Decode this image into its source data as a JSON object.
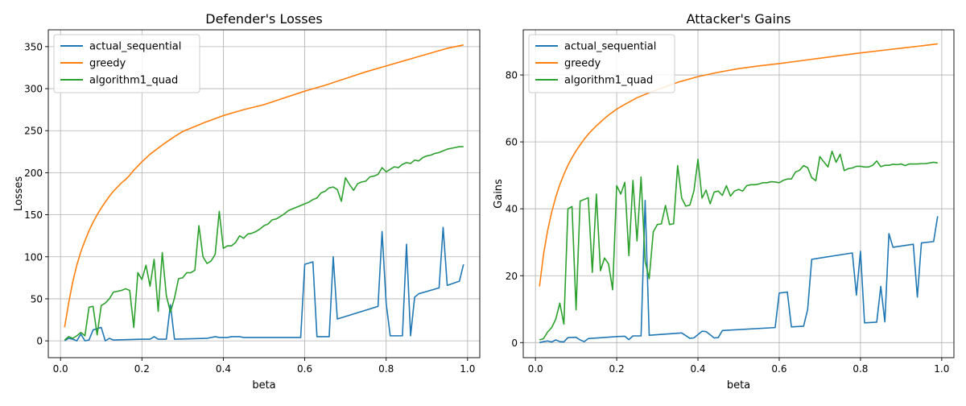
{
  "charts": [
    {
      "type": "line",
      "title": "Defender's Losses",
      "xlabel": "beta",
      "ylabel": "Losses",
      "xlim": [
        -0.03,
        1.03
      ],
      "ylim": [
        -20,
        370
      ],
      "xticks": [
        0.0,
        0.2,
        0.4,
        0.6,
        0.8,
        1.0
      ],
      "xtick_labels": [
        "0.0",
        "0.2",
        "0.4",
        "0.6",
        "0.8",
        "1.0"
      ],
      "yticks": [
        0,
        50,
        100,
        150,
        200,
        250,
        300,
        350
      ],
      "ytick_labels": [
        "0",
        "50",
        "100",
        "150",
        "200",
        "250",
        "300",
        "350"
      ],
      "grid": true,
      "legend_position": "upper-left",
      "series": [
        {
          "name": "actual_sequential",
          "color": "#1f77b4",
          "x": [
            0.01,
            0.02,
            0.03,
            0.04,
            0.05,
            0.06,
            0.07,
            0.08,
            0.1,
            0.11,
            0.12,
            0.13,
            0.2,
            0.22,
            0.23,
            0.24,
            0.26,
            0.27,
            0.28,
            0.36,
            0.38,
            0.39,
            0.41,
            0.42,
            0.44,
            0.45,
            0.46,
            0.59,
            0.6,
            0.62,
            0.63,
            0.66,
            0.67,
            0.68,
            0.78,
            0.79,
            0.8,
            0.81,
            0.84,
            0.85,
            0.86,
            0.87,
            0.88,
            0.93,
            0.94,
            0.95,
            0.98,
            0.99
          ],
          "y": [
            0,
            3,
            2,
            0,
            8,
            0,
            1,
            13,
            16,
            0,
            3,
            1,
            2,
            2,
            5,
            2,
            2,
            43,
            2,
            3,
            5,
            4,
            4,
            5,
            5,
            4,
            4,
            4,
            91,
            94,
            5,
            5,
            100,
            26,
            41,
            130,
            45,
            6,
            6,
            115,
            6,
            52,
            56,
            63,
            135,
            66,
            71,
            91
          ]
        },
        {
          "name": "greedy",
          "color": "#ff7f0e",
          "x": [
            0.01,
            0.02,
            0.03,
            0.04,
            0.05,
            0.06,
            0.07,
            0.08,
            0.09,
            0.1,
            0.11,
            0.12,
            0.13,
            0.14,
            0.15,
            0.16,
            0.17,
            0.18,
            0.2,
            0.22,
            0.25,
            0.28,
            0.3,
            0.35,
            0.4,
            0.45,
            0.5,
            0.55,
            0.6,
            0.65,
            0.7,
            0.75,
            0.8,
            0.85,
            0.9,
            0.95,
            0.99
          ],
          "y": [
            16,
            45,
            70,
            90,
            106,
            119,
            131,
            141,
            150,
            158,
            165,
            172,
            178,
            183,
            188,
            192,
            197,
            203,
            213,
            222,
            233,
            243,
            249,
            259,
            268,
            275,
            281,
            289,
            297,
            304,
            312,
            320,
            327,
            334,
            341,
            348,
            352
          ]
        },
        {
          "name": "algorithm1_quad",
          "color": "#2ca02c",
          "x": [
            0.01,
            0.02,
            0.03,
            0.04,
            0.05,
            0.06,
            0.07,
            0.08,
            0.09,
            0.1,
            0.11,
            0.12,
            0.13,
            0.14,
            0.15,
            0.16,
            0.17,
            0.18,
            0.19,
            0.2,
            0.21,
            0.22,
            0.23,
            0.24,
            0.25,
            0.26,
            0.27,
            0.28,
            0.29,
            0.3,
            0.31,
            0.32,
            0.33,
            0.34,
            0.35,
            0.36,
            0.37,
            0.38,
            0.39,
            0.4,
            0.41,
            0.42,
            0.43,
            0.44,
            0.45,
            0.46,
            0.47,
            0.48,
            0.49,
            0.5,
            0.51,
            0.52,
            0.53,
            0.54,
            0.55,
            0.56,
            0.57,
            0.58,
            0.59,
            0.6,
            0.61,
            0.62,
            0.63,
            0.64,
            0.65,
            0.66,
            0.67,
            0.68,
            0.69,
            0.7,
            0.71,
            0.72,
            0.73,
            0.74,
            0.75,
            0.76,
            0.77,
            0.78,
            0.79,
            0.8,
            0.81,
            0.82,
            0.83,
            0.84,
            0.85,
            0.86,
            0.87,
            0.88,
            0.89,
            0.9,
            0.91,
            0.92,
            0.93,
            0.94,
            0.95,
            0.96,
            0.97,
            0.98,
            0.99
          ],
          "y": [
            1,
            5,
            3,
            6,
            10,
            6,
            40,
            41,
            7,
            42,
            45,
            50,
            58,
            59,
            60,
            62,
            60,
            16,
            81,
            73,
            90,
            65,
            97,
            35,
            105,
            54,
            34,
            51,
            74,
            75,
            81,
            81,
            84,
            137,
            100,
            92,
            95,
            103,
            154,
            110,
            113,
            113,
            117,
            125,
            122,
            127,
            128,
            130,
            133,
            137,
            139,
            144,
            145,
            148,
            151,
            155,
            157,
            159,
            161,
            163,
            165,
            168,
            170,
            176,
            178,
            182,
            183,
            180,
            166,
            194,
            186,
            179,
            187,
            189,
            190,
            195,
            196,
            198,
            206,
            201,
            204,
            207,
            206,
            210,
            212,
            211,
            215,
            214,
            218,
            220,
            221,
            223,
            224,
            226,
            228,
            229,
            230,
            231,
            231
          ]
        }
      ]
    },
    {
      "type": "line",
      "title": "Attacker's Gains",
      "xlabel": "beta",
      "ylabel": "Gains",
      "xlim": [
        -0.03,
        1.03
      ],
      "ylim": [
        -4.5,
        93.5
      ],
      "xticks": [
        0.0,
        0.2,
        0.4,
        0.6,
        0.8,
        1.0
      ],
      "xtick_labels": [
        "0.0",
        "0.2",
        "0.4",
        "0.6",
        "0.8",
        "1.0"
      ],
      "yticks": [
        0,
        20,
        40,
        60,
        80
      ],
      "ytick_labels": [
        "0",
        "20",
        "40",
        "60",
        "80"
      ],
      "grid": true,
      "legend_position": "upper-left",
      "series": [
        {
          "name": "actual_sequential",
          "color": "#1f77b4",
          "x": [
            0.01,
            0.02,
            0.03,
            0.04,
            0.05,
            0.06,
            0.07,
            0.08,
            0.1,
            0.11,
            0.12,
            0.13,
            0.2,
            0.22,
            0.23,
            0.24,
            0.26,
            0.27,
            0.28,
            0.36,
            0.38,
            0.39,
            0.41,
            0.42,
            0.44,
            0.45,
            0.46,
            0.59,
            0.6,
            0.62,
            0.63,
            0.66,
            0.67,
            0.68,
            0.78,
            0.79,
            0.8,
            0.81,
            0.84,
            0.85,
            0.86,
            0.87,
            0.88,
            0.93,
            0.94,
            0.95,
            0.98,
            0.99
          ],
          "y": [
            0,
            0.3,
            0.5,
            0.2,
            0.8,
            0.3,
            0.2,
            1.5,
            1.6,
            0.8,
            0.3,
            1.2,
            1.8,
            1.9,
            0.9,
            2,
            2,
            42.5,
            2.2,
            2.9,
            1.3,
            1.4,
            3.4,
            3.3,
            1.4,
            1.5,
            3.6,
            4.5,
            14.8,
            15.1,
            4.7,
            4.9,
            9.9,
            24.9,
            26.8,
            14.2,
            27.3,
            5.9,
            6.1,
            16.8,
            6.2,
            32.6,
            28.5,
            29.4,
            13.6,
            29.8,
            30.2,
            37.8
          ]
        },
        {
          "name": "greedy",
          "color": "#ff7f0e",
          "x": [
            0.01,
            0.02,
            0.03,
            0.04,
            0.05,
            0.06,
            0.07,
            0.08,
            0.09,
            0.1,
            0.11,
            0.12,
            0.13,
            0.14,
            0.15,
            0.16,
            0.17,
            0.18,
            0.2,
            0.22,
            0.25,
            0.28,
            0.3,
            0.35,
            0.4,
            0.45,
            0.5,
            0.55,
            0.6,
            0.65,
            0.7,
            0.75,
            0.8,
            0.85,
            0.9,
            0.95,
            0.99
          ],
          "y": [
            16.8,
            26.5,
            33.5,
            39,
            43.5,
            47.2,
            50.3,
            53,
            55.3,
            57.3,
            59.1,
            60.8,
            62.3,
            63.6,
            64.8,
            65.9,
            67,
            68,
            69.8,
            71.2,
            73.2,
            74.7,
            75.6,
            77.8,
            79.5,
            80.8,
            81.9,
            82.7,
            83.4,
            84.2,
            85,
            85.8,
            86.6,
            87.3,
            88,
            88.7,
            89.3
          ]
        },
        {
          "name": "algorithm1_quad",
          "color": "#2ca02c",
          "x": [
            0.01,
            0.02,
            0.03,
            0.04,
            0.05,
            0.06,
            0.07,
            0.08,
            0.09,
            0.1,
            0.11,
            0.12,
            0.13,
            0.14,
            0.15,
            0.16,
            0.17,
            0.18,
            0.19,
            0.2,
            0.21,
            0.22,
            0.23,
            0.24,
            0.25,
            0.26,
            0.27,
            0.28,
            0.29,
            0.3,
            0.31,
            0.32,
            0.33,
            0.34,
            0.35,
            0.36,
            0.37,
            0.38,
            0.39,
            0.4,
            0.41,
            0.42,
            0.43,
            0.44,
            0.45,
            0.46,
            0.47,
            0.48,
            0.49,
            0.5,
            0.51,
            0.52,
            0.53,
            0.54,
            0.55,
            0.56,
            0.57,
            0.58,
            0.59,
            0.6,
            0.61,
            0.62,
            0.63,
            0.64,
            0.65,
            0.66,
            0.67,
            0.68,
            0.69,
            0.7,
            0.71,
            0.72,
            0.73,
            0.74,
            0.75,
            0.76,
            0.77,
            0.78,
            0.79,
            0.8,
            0.81,
            0.82,
            0.83,
            0.84,
            0.85,
            0.86,
            0.87,
            0.88,
            0.89,
            0.9,
            0.91,
            0.92,
            0.93,
            0.94,
            0.95,
            0.96,
            0.97,
            0.98,
            0.99
          ],
          "y": [
            0.8,
            1.2,
            3.2,
            4.5,
            7,
            11.8,
            5.5,
            40,
            40.7,
            9.8,
            42.3,
            42.8,
            43.3,
            21,
            44.4,
            21.5,
            25.3,
            23.5,
            15.8,
            46.9,
            44.4,
            47.9,
            26,
            48.5,
            30.4,
            49.5,
            24.3,
            19.1,
            33.1,
            35.3,
            35.5,
            41,
            35.3,
            35.5,
            52.9,
            43.2,
            40.8,
            41.1,
            45.3,
            54.8,
            43.2,
            45.6,
            41.5,
            45,
            45.3,
            44,
            46.9,
            43.8,
            45.3,
            45.8,
            45.3,
            46.9,
            47.2,
            47.2,
            47.4,
            47.8,
            47.8,
            48.1,
            48,
            47.8,
            48.5,
            48.9,
            48.9,
            51,
            51.5,
            52.9,
            52.3,
            49.3,
            48.4,
            55.6,
            54,
            52.5,
            57.2,
            53.9,
            56.3,
            51.4,
            52,
            52.2,
            52.7,
            52.7,
            52.5,
            52.5,
            53,
            54.3,
            52.6,
            53,
            53,
            53.3,
            53.2,
            53.4,
            52.9,
            53.4,
            53.4,
            53.4,
            53.5,
            53.5,
            53.7,
            53.9,
            53.7
          ]
        }
      ]
    }
  ]
}
